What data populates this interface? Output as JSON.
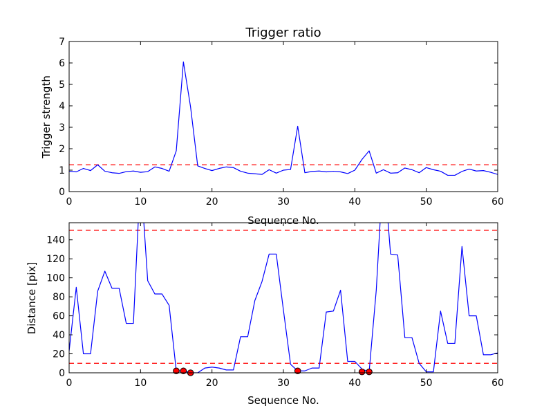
{
  "colors": {
    "series": "#0000ff",
    "threshold": "#ff0000",
    "marker_fill": "#ff0000",
    "marker_edge": "#000000",
    "axes": "#000000",
    "background": "#ffffff"
  },
  "chart_data": [
    {
      "type": "line",
      "title": "Trigger ratio",
      "xlabel": "Sequence No.",
      "ylabel": "Trigger strength",
      "xlim": [
        0,
        60
      ],
      "ylim": [
        0,
        7
      ],
      "xticks": [
        "0",
        "10",
        "20",
        "30",
        "40",
        "50",
        "60"
      ],
      "yticks": [
        "0",
        "1",
        "2",
        "3",
        "4",
        "5",
        "6",
        "7"
      ],
      "grid": false,
      "series": [
        {
          "x": [
            0,
            1,
            2,
            3,
            4,
            5,
            6,
            7,
            8,
            9,
            10,
            11,
            12,
            13,
            14,
            15,
            16,
            17,
            18,
            19,
            20,
            21,
            22,
            23,
            24,
            25,
            26,
            27,
            28,
            29,
            30,
            31,
            32,
            33,
            34,
            35,
            36,
            37,
            38,
            39,
            40,
            41,
            42,
            43,
            44,
            45,
            46,
            47,
            48,
            49,
            50,
            51,
            52,
            53,
            54,
            55,
            56,
            57,
            58,
            59,
            60
          ],
          "y": [
            0.95,
            0.92,
            1.08,
            0.98,
            1.25,
            0.95,
            0.88,
            0.85,
            0.93,
            0.96,
            0.9,
            0.93,
            1.15,
            1.08,
            0.95,
            1.9,
            6.05,
            3.95,
            1.2,
            1.08,
            0.98,
            1.08,
            1.15,
            1.12,
            0.95,
            0.86,
            0.83,
            0.8,
            1.02,
            0.86,
            1.0,
            1.03,
            3.05,
            0.88,
            0.94,
            0.96,
            0.92,
            0.95,
            0.92,
            0.84,
            1.0,
            1.5,
            1.9,
            0.86,
            1.02,
            0.86,
            0.88,
            1.1,
            1.02,
            0.88,
            1.12,
            1.02,
            0.95,
            0.76,
            0.76,
            0.94,
            1.05,
            0.96,
            0.98,
            0.9,
            0.8
          ]
        }
      ],
      "thresholds": [
        {
          "y": 1.25,
          "style": "dashed"
        }
      ]
    },
    {
      "type": "line",
      "title": "",
      "xlabel": "Sequence No.",
      "ylabel": "Distance [pix]",
      "xlim": [
        0,
        60
      ],
      "ylim": [
        0,
        158
      ],
      "xticks": [
        "0",
        "10",
        "20",
        "30",
        "40",
        "50",
        "60"
      ],
      "yticks": [
        "0",
        "20",
        "40",
        "60",
        "80",
        "100",
        "120",
        "140"
      ],
      "grid": false,
      "series": [
        {
          "x": [
            0,
            1,
            2,
            3,
            4,
            5,
            6,
            7,
            8,
            9,
            10,
            11,
            12,
            13,
            14,
            15,
            16,
            17,
            18,
            19,
            20,
            21,
            22,
            23,
            24,
            25,
            26,
            27,
            28,
            29,
            30,
            31,
            32,
            33,
            34,
            35,
            36,
            37,
            38,
            39,
            40,
            41,
            42,
            43,
            44,
            45,
            46,
            47,
            48,
            49,
            50,
            51,
            52,
            53,
            54,
            55,
            56,
            57,
            58,
            59,
            60
          ],
          "y": [
            23,
            90,
            20,
            20,
            86,
            107,
            89,
            89,
            52,
            52,
            210,
            97,
            83,
            83,
            71,
            2,
            2,
            0,
            0,
            5,
            6,
            5,
            3,
            3,
            38,
            38,
            76,
            96,
            125,
            125,
            66,
            9,
            2,
            2,
            5,
            5,
            64,
            65,
            87,
            12,
            12,
            4,
            1,
            87,
            220,
            125,
            124,
            37,
            37,
            10,
            1,
            1,
            65,
            31,
            31,
            133,
            60,
            60,
            19,
            19,
            21
          ]
        }
      ],
      "markers": {
        "x": [
          15,
          16,
          17,
          32,
          41,
          42
        ],
        "y": [
          2,
          2,
          0,
          2,
          1,
          1
        ]
      },
      "thresholds": [
        {
          "y": 10,
          "style": "dashed"
        },
        {
          "y": 150,
          "style": "dashed"
        }
      ]
    }
  ]
}
